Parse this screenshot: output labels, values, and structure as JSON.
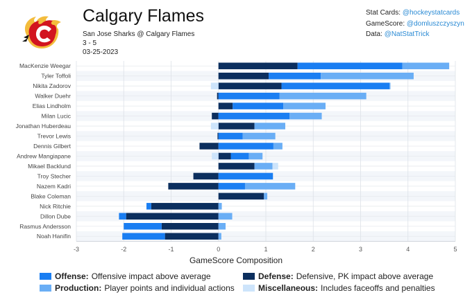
{
  "header": {
    "title": "Calgary Flames",
    "matchup": "San Jose Sharks @ Calgary Flames",
    "score": "3 - 5",
    "date": "03-25-2023"
  },
  "credits": [
    {
      "label": "Stat Cards:",
      "handle": "@hockeystatcards"
    },
    {
      "label": "GameScore:",
      "handle": "@domluszczyszyn"
    },
    {
      "label": "Data:",
      "handle": "@NatStatTrick"
    }
  ],
  "colors": {
    "offense": "#1a7ef2",
    "defense": "#0c2f5e",
    "production": "#6aaef5",
    "misc": "#cde4fb",
    "logo_red": "#d2141f",
    "logo_gold": "#f3bc3c"
  },
  "chart_data": {
    "type": "bar",
    "orientation": "horizontal-stacked",
    "xlabel": "GameScore Composition",
    "xlim": [
      -3,
      5
    ],
    "xticks": [
      -3,
      -2,
      -1,
      0,
      1,
      2,
      3,
      4,
      5
    ],
    "grid": true,
    "stack_order": [
      "defense",
      "offense",
      "production",
      "misc"
    ],
    "categories": [
      "MacKenzie Weegar",
      "Tyler Toffoli",
      "Nikita Zadorov",
      "Walker Duehr",
      "Elias Lindholm",
      "Milan Lucic",
      "Jonathan Huberdeau",
      "Trevor Lewis",
      "Dennis Gilbert",
      "Andrew Mangiapane",
      "Mikael Backlund",
      "Troy Stecher",
      "Nazem Kadri",
      "Blake Coleman",
      "Nick Ritchie",
      "Dillon Dube",
      "Rasmus Andersson",
      "Noah Hanifin"
    ],
    "series": [
      {
        "key": "defense",
        "name": "Defense",
        "values": [
          1.67,
          1.06,
          1.33,
          -0.03,
          0.3,
          -0.14,
          0.76,
          -0.02,
          -0.4,
          0.26,
          0.76,
          -0.53,
          -1.06,
          0.96,
          -1.42,
          -1.95,
          -1.2,
          -1.13
        ]
      },
      {
        "key": "offense",
        "name": "Offense",
        "values": [
          2.21,
          1.1,
          2.28,
          1.29,
          1.07,
          1.5,
          0.0,
          0.51,
          1.16,
          0.38,
          0.0,
          1.15,
          0.56,
          0.0,
          -0.1,
          -0.15,
          -0.8,
          -0.9
        ]
      },
      {
        "key": "production",
        "name": "Production",
        "values": [
          0.99,
          1.96,
          0.02,
          1.83,
          0.89,
          0.68,
          0.65,
          0.69,
          0.19,
          0.29,
          0.38,
          0.0,
          1.06,
          0.07,
          0.07,
          0.29,
          0.15,
          0.06
        ]
      },
      {
        "key": "misc",
        "name": "Miscellaneous",
        "values": [
          0.0,
          0.0,
          -0.16,
          0.0,
          0.0,
          0.0,
          -0.16,
          0.0,
          0.0,
          -0.14,
          0.12,
          0.0,
          0.0,
          0.0,
          0.0,
          0.0,
          0.0,
          0.0
        ]
      }
    ]
  },
  "legend": [
    {
      "key": "offense",
      "bold": "Offense:",
      "text": "Offensive impact above average"
    },
    {
      "key": "defense",
      "bold": "Defense:",
      "text": "Defensive, PK impact above average"
    },
    {
      "key": "production",
      "bold": "Production:",
      "text": "Player points and individual actions"
    },
    {
      "key": "misc",
      "bold": "Miscellaneous:",
      "text": "Includes faceoffs and penalties"
    }
  ]
}
